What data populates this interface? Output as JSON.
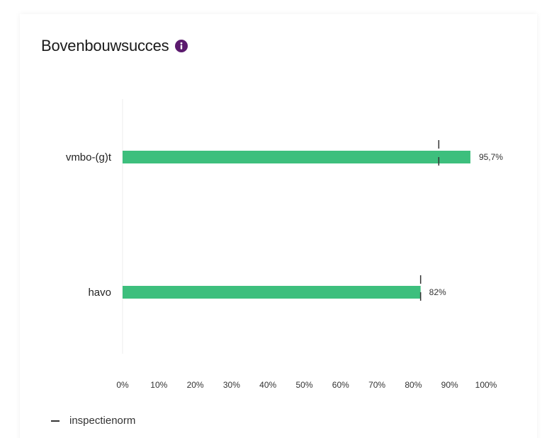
{
  "header": {
    "title": "Bovenbouwsucces",
    "info_icon": "info-icon"
  },
  "legend": {
    "label": "inspectienorm"
  },
  "colors": {
    "bar": "#3dbf7d",
    "norm_marker": "#333333",
    "info_icon": "#5b1a6e"
  },
  "chart_data": {
    "type": "bar",
    "orientation": "horizontal",
    "title": "Bovenbouwsucces",
    "categories": [
      "vmbo-(g)t",
      "havo"
    ],
    "values": [
      95.7,
      82
    ],
    "value_labels": [
      "95,7%",
      "82%"
    ],
    "inspectienorm": [
      87,
      82
    ],
    "xlim": [
      0,
      100
    ],
    "xticks": [
      "0%",
      "10%",
      "20%",
      "30%",
      "40%",
      "50%",
      "60%",
      "70%",
      "80%",
      "90%",
      "100%"
    ],
    "grid": false,
    "legend": {
      "position": "bottom-left",
      "entries": [
        "inspectienorm"
      ]
    }
  }
}
